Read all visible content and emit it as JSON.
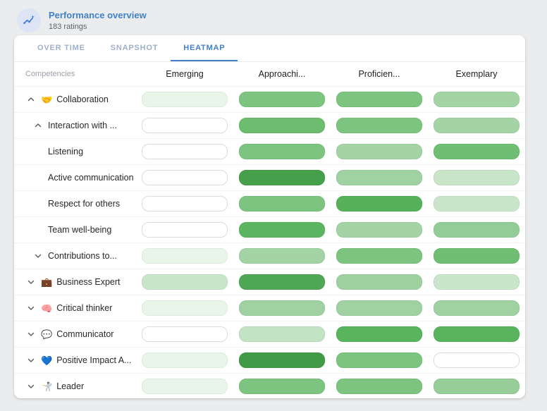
{
  "header": {
    "title": "Performance overview",
    "subtitle": "183 ratings",
    "icon": "trend-chart-icon"
  },
  "tabs": [
    {
      "label": "OVER TIME",
      "active": false
    },
    {
      "label": "SNAPSHOT",
      "active": false
    },
    {
      "label": "HEATMAP",
      "active": true
    }
  ],
  "colors": {
    "title_blue": "#4181c6",
    "tab_active_blue": "#447fc4",
    "tab_inactive": "#9fb0c9",
    "avatar_bg": "#dce4f6",
    "avatar_glyph": "#4a7ed2",
    "page_bg": "#ebecee",
    "row_divider": "#f2f3f5"
  },
  "table": {
    "row_header_label": "Competencies",
    "columns": [
      "Emerging",
      "Approachi...",
      "Proficien...",
      "Exemplary"
    ],
    "rows": [
      {
        "label": "Collaboration",
        "level": 1,
        "chevron": "up",
        "emoji": "🤝",
        "emoji_name": "handshake-emoji",
        "cells": [
          {
            "bg": "#eaf5ea",
            "border": "#d9edda"
          },
          {
            "bg": "#7dc481",
            "border": "#72bc76"
          },
          {
            "bg": "#7dc481",
            "border": "#72bc76"
          },
          {
            "bg": "#a4d3a6",
            "border": "#99cb9b"
          }
        ]
      },
      {
        "label": "Interaction with ...",
        "level": 2,
        "chevron": "up",
        "emoji": null,
        "emoji_name": null,
        "cells": [
          {
            "bg": "#ffffff",
            "border": "#d9dbde"
          },
          {
            "bg": "#6cbd70",
            "border": "#62b566"
          },
          {
            "bg": "#7dc481",
            "border": "#72bc76"
          },
          {
            "bg": "#a4d3a6",
            "border": "#99cb9b"
          }
        ]
      },
      {
        "label": "Listening",
        "level": 3,
        "chevron": null,
        "emoji": null,
        "emoji_name": null,
        "cells": [
          {
            "bg": "#ffffff",
            "border": "#d9dbde"
          },
          {
            "bg": "#7dc481",
            "border": "#72bc76"
          },
          {
            "bg": "#a4d3a6",
            "border": "#99cb9b"
          },
          {
            "bg": "#6fbe73",
            "border": "#66b76a"
          }
        ]
      },
      {
        "label": "Active communication",
        "level": 3,
        "chevron": null,
        "emoji": null,
        "emoji_name": null,
        "cells": [
          {
            "bg": "#ffffff",
            "border": "#d9dbde"
          },
          {
            "bg": "#46a04b",
            "border": "#3f9944"
          },
          {
            "bg": "#a0d1a3",
            "border": "#95c998"
          },
          {
            "bg": "#c9e6ca",
            "border": "#b9dcba"
          }
        ]
      },
      {
        "label": "Respect for others",
        "level": 3,
        "chevron": null,
        "emoji": null,
        "emoji_name": null,
        "cells": [
          {
            "bg": "#ffffff",
            "border": "#d9dbde"
          },
          {
            "bg": "#7dc481",
            "border": "#72bc76"
          },
          {
            "bg": "#55b15a",
            "border": "#4daa52"
          },
          {
            "bg": "#c9e6ca",
            "border": "#b9dcba"
          }
        ]
      },
      {
        "label": "Team well-being",
        "level": 3,
        "chevron": null,
        "emoji": null,
        "emoji_name": null,
        "cells": [
          {
            "bg": "#ffffff",
            "border": "#d9dbde"
          },
          {
            "bg": "#5cb661",
            "border": "#54af59"
          },
          {
            "bg": "#a4d3a6",
            "border": "#99cb9b"
          },
          {
            "bg": "#93cc96",
            "border": "#89c48c"
          }
        ]
      },
      {
        "label": "Contributions to...",
        "level": 2,
        "chevron": "down",
        "emoji": null,
        "emoji_name": null,
        "cells": [
          {
            "bg": "#eaf5ea",
            "border": "#d9edda"
          },
          {
            "bg": "#a4d3a6",
            "border": "#99cb9b"
          },
          {
            "bg": "#7dc481",
            "border": "#72bc76"
          },
          {
            "bg": "#6fbe73",
            "border": "#66b76a"
          }
        ]
      },
      {
        "label": "Business Expert",
        "level": 1,
        "chevron": "down",
        "emoji": "💼",
        "emoji_name": "briefcase-emoji",
        "cells": [
          {
            "bg": "#c9e6ca",
            "border": "#b9dcba"
          },
          {
            "bg": "#4fa954",
            "border": "#48a24d"
          },
          {
            "bg": "#9ed0a0",
            "border": "#93c896"
          },
          {
            "bg": "#c9e6ca",
            "border": "#b9dcba"
          }
        ]
      },
      {
        "label": "Critical thinker",
        "level": 1,
        "chevron": "down",
        "emoji": "🧠",
        "emoji_name": "brain-emoji",
        "cells": [
          {
            "bg": "#eaf5ea",
            "border": "#d9edda"
          },
          {
            "bg": "#a0d1a3",
            "border": "#95c998"
          },
          {
            "bg": "#a0d1a3",
            "border": "#95c998"
          },
          {
            "bg": "#a0d1a3",
            "border": "#95c998"
          }
        ]
      },
      {
        "label": "Communicator",
        "level": 1,
        "chevron": "down",
        "emoji": "💬",
        "emoji_name": "speech-balloon-emoji",
        "cells": [
          {
            "bg": "#ffffff",
            "border": "#d9dbde"
          },
          {
            "bg": "#c3e3c5",
            "border": "#b3d9b5"
          },
          {
            "bg": "#58b45d",
            "border": "#50ad55"
          },
          {
            "bg": "#58b45d",
            "border": "#50ad55"
          }
        ]
      },
      {
        "label": "Positive Impact A...",
        "level": 1,
        "chevron": "down",
        "emoji": "💙",
        "emoji_name": "blue-heart-emoji",
        "cells": [
          {
            "bg": "#eaf5ea",
            "border": "#d9edda"
          },
          {
            "bg": "#419b46",
            "border": "#3b9440"
          },
          {
            "bg": "#7dc481",
            "border": "#72bc76"
          },
          {
            "bg": "#ffffff",
            "border": "#d9dbde"
          }
        ]
      },
      {
        "label": "Leader",
        "level": 1,
        "chevron": "down",
        "emoji": "🤺",
        "emoji_name": "fencer-emoji",
        "cells": [
          {
            "bg": "#eaf5ea",
            "border": "#d9edda"
          },
          {
            "bg": "#7dc481",
            "border": "#72bc76"
          },
          {
            "bg": "#7dc481",
            "border": "#72bc76"
          },
          {
            "bg": "#96cd99",
            "border": "#8cc58f"
          }
        ]
      }
    ]
  }
}
